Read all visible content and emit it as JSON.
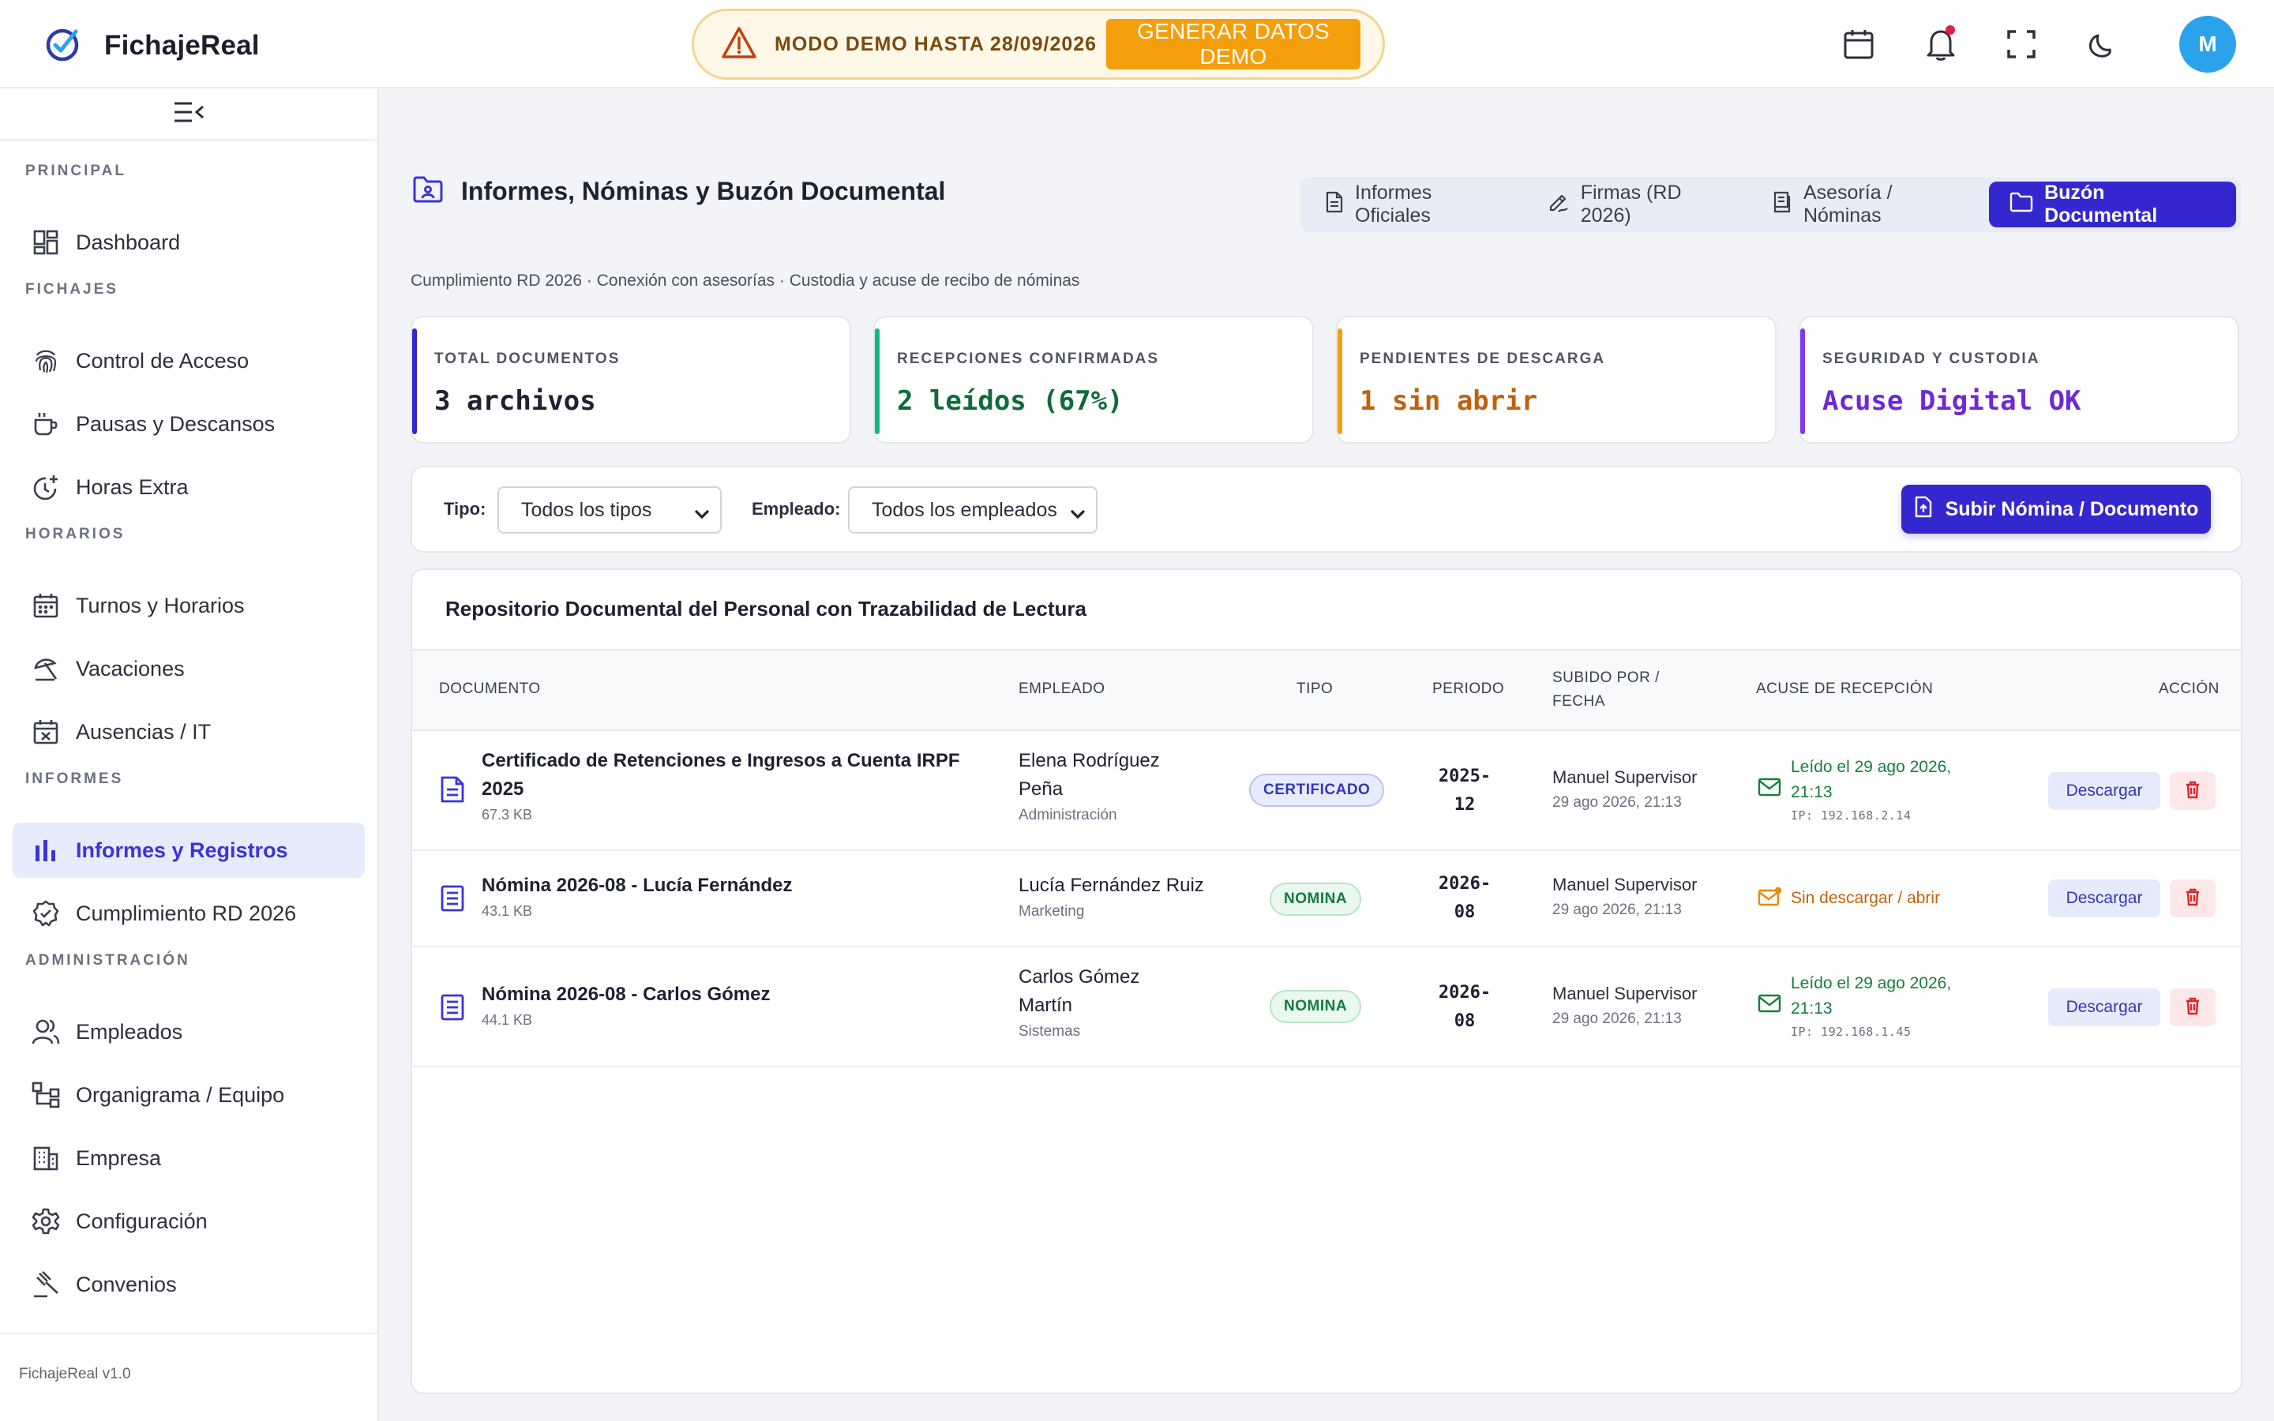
{
  "app": {
    "name": "FichajeReal",
    "version": "FichajeReal v1.0",
    "demo_text": "MODO DEMO HASTA 28/09/2026",
    "demo_button": "GENERAR DATOS DEMO",
    "avatar_initial": "M"
  },
  "icons": {
    "brand": "check-circle-icon",
    "warning": "warning-triangle-icon",
    "calendar": "calendar-icon",
    "bell": "bell-icon",
    "fullscreen": "fullscreen-icon",
    "theme": "moon-icon"
  },
  "sidebar": {
    "sections": [
      {
        "title": "PRINCIPAL",
        "items": [
          {
            "label": "Dashboard",
            "icon": "dashboard-icon"
          }
        ]
      },
      {
        "title": "FICHAJES",
        "items": [
          {
            "label": "Control de Acceso",
            "icon": "fingerprint-icon"
          },
          {
            "label": "Pausas y Descansos",
            "icon": "coffee-icon"
          },
          {
            "label": "Horas Extra",
            "icon": "clock-plus-icon"
          }
        ]
      },
      {
        "title": "HORARIOS",
        "items": [
          {
            "label": "Turnos y Horarios",
            "icon": "calendar-grid-icon"
          },
          {
            "label": "Vacaciones",
            "icon": "beach-umbrella-icon"
          },
          {
            "label": "Ausencias / IT",
            "icon": "calendar-x-icon"
          }
        ]
      },
      {
        "title": "INFORMES",
        "items": [
          {
            "label": "Informes y Registros",
            "icon": "bar-chart-icon",
            "active": true
          },
          {
            "label": "Cumplimiento RD 2026",
            "icon": "shield-check-icon"
          }
        ]
      },
      {
        "title": "ADMINISTRACIÓN",
        "items": [
          {
            "label": "Empleados",
            "icon": "users-icon"
          },
          {
            "label": "Organigrama / Equipo",
            "icon": "org-chart-icon"
          },
          {
            "label": "Empresa",
            "icon": "building-icon"
          },
          {
            "label": "Configuración",
            "icon": "gear-icon"
          },
          {
            "label": "Convenios",
            "icon": "gavel-icon"
          }
        ]
      }
    ]
  },
  "page": {
    "title": "Informes, Nóminas y Buzón Documental",
    "subtitle": "Cumplimiento RD 2026 · Conexión con asesorías · Custodia y acuse de recibo de nóminas",
    "tabs": [
      {
        "label": "Informes Oficiales",
        "icon": "document-icon"
      },
      {
        "label": "Firmas (RD 2026)",
        "icon": "signature-pen-icon"
      },
      {
        "label": "Asesoría / Nóminas",
        "icon": "receipt-icon"
      },
      {
        "label": "Buzón Documental",
        "icon": "folder-icon",
        "active": true
      }
    ]
  },
  "stats": [
    {
      "label": "TOTAL DOCUMENTOS",
      "value": "3 archivos",
      "color": "#3527cf",
      "value_color": "#1d2130"
    },
    {
      "label": "RECEPCIONES CONFIRMADAS",
      "value": "2 leídos (67%)",
      "color": "#10b981",
      "value_color": "#0f6b3c"
    },
    {
      "label": "PENDIENTES DE DESCARGA",
      "value": "1 sin abrir",
      "color": "#f59e0b",
      "value_color": "#c2610c"
    },
    {
      "label": "SEGURIDAD Y CUSTODIA",
      "value": "Acuse Digital OK",
      "color": "#7c3aed",
      "value_color": "#6d28d9"
    }
  ],
  "filters": {
    "type_label": "Tipo:",
    "type_value": "Todos los tipos",
    "employee_label": "Empleado:",
    "employee_value": "Todos los empleados",
    "upload_button": "Subir Nómina / Documento"
  },
  "table": {
    "title": "Repositorio Documental del Personal con Trazabilidad de Lectura",
    "headers": {
      "document": "DOCUMENTO",
      "employee": "EMPLEADO",
      "type": "TIPO",
      "period": "PERIODO",
      "uploaded_1": "SUBIDO POR /",
      "uploaded_2": "FECHA",
      "ack": "ACUSE DE RECEPCIÓN",
      "action": "ACCIÓN"
    },
    "download_label": "Descargar",
    "rows": [
      {
        "doc_1": "Certificado de Retenciones e Ingresos a Cuenta IRPF",
        "doc_2": "2025",
        "size": "67.3 KB",
        "emp_1": "Elena Rodríguez",
        "emp_2": "Peña",
        "dept": "Administración",
        "type": "CERTIFICADO",
        "period_1": "2025-",
        "period_2": "12",
        "uploader": "Manuel Supervisor",
        "date": "29 ago 2026, 21:13",
        "ack_1": "Leído el 29 ago 2026,",
        "ack_2": "21:13",
        "ip": "IP: 192.168.2.14",
        "status": "read"
      },
      {
        "doc_1": "Nómina 2026-08 - Lucía Fernández",
        "doc_2": "",
        "size": "43.1 KB",
        "emp_1": "Lucía Fernández Ruiz",
        "emp_2": "",
        "dept": "Marketing",
        "type": "NOMINA",
        "period_1": "2026-",
        "period_2": "08",
        "uploader": "Manuel Supervisor",
        "date": "29 ago 2026, 21:13",
        "ack_1": "Sin descargar / abrir",
        "ack_2": "",
        "ip": "",
        "status": "pending"
      },
      {
        "doc_1": "Nómina 2026-08 - Carlos Gómez",
        "doc_2": "",
        "size": "44.1 KB",
        "emp_1": "Carlos Gómez",
        "emp_2": "Martín",
        "dept": "Sistemas",
        "type": "NOMINA",
        "period_1": "2026-",
        "period_2": "08",
        "uploader": "Manuel Supervisor",
        "date": "29 ago 2026, 21:13",
        "ack_1": "Leído el 29 ago 2026,",
        "ack_2": "21:13",
        "ip": "IP: 192.168.1.45",
        "status": "read"
      }
    ]
  }
}
